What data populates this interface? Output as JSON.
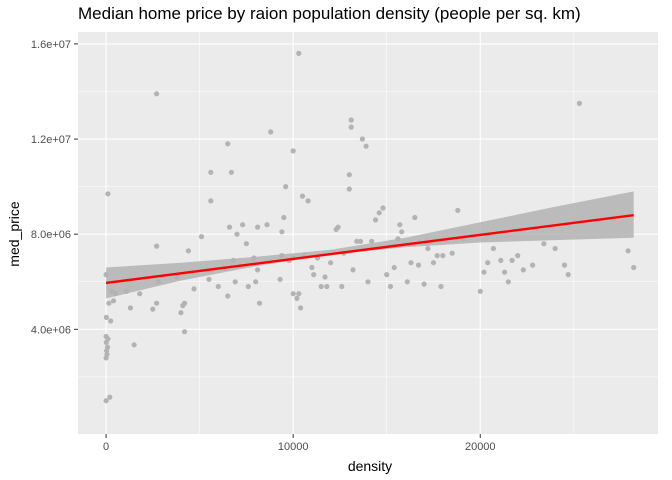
{
  "chart_data": {
    "type": "scatter",
    "title": "Median home price by raion population density (people per sq. km)",
    "xlabel": "density",
    "ylabel": "med_price",
    "xlim": [
      -1500,
      29500
    ],
    "ylim": [
      -400000,
      16500000
    ],
    "x_ticks": [
      0,
      10000,
      20000
    ],
    "x_tick_labels": [
      "0",
      "10000",
      "20000"
    ],
    "y_ticks": [
      4000000,
      8000000,
      12000000,
      16000000
    ],
    "y_tick_labels": [
      "4.0e+06",
      "8.0e+06",
      "1.2e+07",
      "1.6e+07"
    ],
    "x_minor_ticks": [
      5000,
      15000,
      25000
    ],
    "y_minor_ticks": [
      2000000,
      6000000,
      10000000,
      14000000
    ],
    "grid": true,
    "colors": {
      "panel": "#ebebeb",
      "grid": "#ffffff",
      "points": "#b3b3b3",
      "fit_line": "#ff0000",
      "ribbon": "#b3b3b3"
    },
    "series": [
      {
        "points": [
          [
            0,
            1000000
          ],
          [
            200,
            1150000
          ],
          [
            0,
            2800000
          ],
          [
            50,
            2950000
          ],
          [
            30,
            3100000
          ],
          [
            80,
            3250000
          ],
          [
            10,
            3450000
          ],
          [
            100,
            3600000
          ],
          [
            0,
            3700000
          ],
          [
            20,
            4500000
          ],
          [
            250,
            4350000
          ],
          [
            150,
            5100000
          ],
          [
            400,
            5200000
          ],
          [
            300,
            5600000
          ],
          [
            500,
            5500000
          ],
          [
            0,
            6300000
          ],
          [
            100,
            9700000
          ],
          [
            1100,
            5600000
          ],
          [
            1300,
            4900000
          ],
          [
            1500,
            3350000
          ],
          [
            1800,
            5500000
          ],
          [
            2500,
            4850000
          ],
          [
            2700,
            5100000
          ],
          [
            2800,
            6000000
          ],
          [
            2700,
            7500000
          ],
          [
            2700,
            13900000
          ],
          [
            3800,
            6200000
          ],
          [
            4000,
            4700000
          ],
          [
            4100,
            5000000
          ],
          [
            4200,
            5100000
          ],
          [
            4400,
            7300000
          ],
          [
            4200,
            3900000
          ],
          [
            4700,
            5700000
          ],
          [
            5100,
            7900000
          ],
          [
            5500,
            6100000
          ],
          [
            5600,
            10600000
          ],
          [
            5600,
            9400000
          ],
          [
            6000,
            5800000
          ],
          [
            6500,
            5400000
          ],
          [
            6500,
            11800000
          ],
          [
            6600,
            8300000
          ],
          [
            6700,
            10600000
          ],
          [
            6800,
            6900000
          ],
          [
            6900,
            6000000
          ],
          [
            7000,
            8000000
          ],
          [
            7300,
            8400000
          ],
          [
            7500,
            7600000
          ],
          [
            7600,
            5800000
          ],
          [
            7900,
            7000000
          ],
          [
            8000,
            6000000
          ],
          [
            8100,
            8300000
          ],
          [
            8100,
            6500000
          ],
          [
            8200,
            5100000
          ],
          [
            8600,
            8400000
          ],
          [
            8800,
            12300000
          ],
          [
            9300,
            6100000
          ],
          [
            9400,
            7100000
          ],
          [
            9400,
            8100000
          ],
          [
            9500,
            8700000
          ],
          [
            9600,
            10000000
          ],
          [
            9800,
            6900000
          ],
          [
            10000,
            5500000
          ],
          [
            10000,
            11500000
          ],
          [
            10000,
            7000000
          ],
          [
            10200,
            5300000
          ],
          [
            10300,
            15600000
          ],
          [
            10300,
            5500000
          ],
          [
            10400,
            4900000
          ],
          [
            10500,
            9600000
          ],
          [
            10600,
            7100000
          ],
          [
            10800,
            9400000
          ],
          [
            11000,
            6600000
          ],
          [
            11100,
            6300000
          ],
          [
            11300,
            7000000
          ],
          [
            11500,
            5800000
          ],
          [
            11700,
            6200000
          ],
          [
            11800,
            5800000
          ],
          [
            12000,
            6800000
          ],
          [
            12300,
            8200000
          ],
          [
            12400,
            8300000
          ],
          [
            12600,
            5800000
          ],
          [
            12700,
            7200000
          ],
          [
            13000,
            9900000
          ],
          [
            13000,
            10500000
          ],
          [
            13100,
            12500000
          ],
          [
            13100,
            12800000
          ],
          [
            13200,
            6500000
          ],
          [
            13400,
            7700000
          ],
          [
            13600,
            7700000
          ],
          [
            13700,
            12000000
          ],
          [
            13900,
            11700000
          ],
          [
            14000,
            6000000
          ],
          [
            14200,
            7700000
          ],
          [
            14400,
            8600000
          ],
          [
            14600,
            8900000
          ],
          [
            14800,
            9100000
          ],
          [
            15000,
            6300000
          ],
          [
            15200,
            5800000
          ],
          [
            15400,
            6600000
          ],
          [
            15600,
            7800000
          ],
          [
            15700,
            8400000
          ],
          [
            15800,
            8100000
          ],
          [
            16100,
            6000000
          ],
          [
            16300,
            6800000
          ],
          [
            16500,
            8700000
          ],
          [
            16700,
            6700000
          ],
          [
            17000,
            5900000
          ],
          [
            17200,
            7400000
          ],
          [
            17500,
            6800000
          ],
          [
            17700,
            7100000
          ],
          [
            17900,
            5800000
          ],
          [
            18000,
            7100000
          ],
          [
            18500,
            7200000
          ],
          [
            18800,
            9000000
          ],
          [
            19100,
            7800000
          ],
          [
            20000,
            5600000
          ],
          [
            20200,
            6400000
          ],
          [
            20400,
            6800000
          ],
          [
            20700,
            7400000
          ],
          [
            21100,
            6900000
          ],
          [
            21300,
            6400000
          ],
          [
            21500,
            6000000
          ],
          [
            21700,
            6900000
          ],
          [
            22000,
            7100000
          ],
          [
            22300,
            6500000
          ],
          [
            22800,
            6700000
          ],
          [
            23400,
            7600000
          ],
          [
            24000,
            7400000
          ],
          [
            24500,
            6700000
          ],
          [
            24700,
            6300000
          ],
          [
            25300,
            13500000
          ],
          [
            27900,
            7300000
          ],
          [
            28200,
            6600000
          ]
        ]
      }
    ],
    "fit": {
      "x": [
        0,
        28200
      ],
      "y": [
        5950000,
        8800000
      ],
      "ci_x": [
        0,
        4000,
        8000,
        12000,
        16000,
        20000,
        24000,
        28200
      ],
      "ci_lower": [
        5300000,
        6050000,
        6650000,
        7150000,
        7450000,
        7650000,
        7750000,
        7850000
      ],
      "ci_upper": [
        6600000,
        6800000,
        7050000,
        7350000,
        7850000,
        8500000,
        9150000,
        9800000
      ]
    }
  }
}
